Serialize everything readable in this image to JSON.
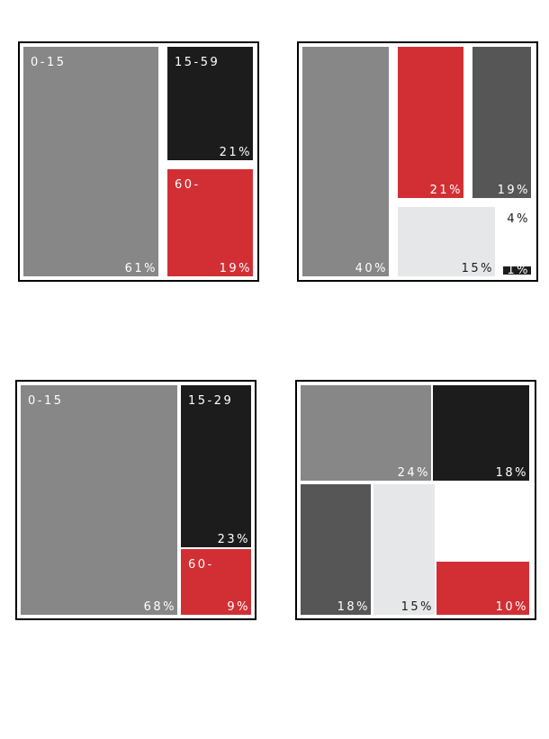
{
  "colors": {
    "gray": "#878787",
    "black": "#1c1c1c",
    "red": "#d22f35",
    "dark": "#565656",
    "light": "#e6e7e9",
    "white": "#ffffff",
    "label_white": "#ffffff",
    "label_dark": "#1c1c1c"
  },
  "chart_data": [
    {
      "type": "treemap",
      "tiles": [
        {
          "group": "0-15",
          "percent_label": "61%",
          "value": 61,
          "color": "gray"
        },
        {
          "group": "15-59",
          "percent_label": "21%",
          "value": 21,
          "color": "black"
        },
        {
          "group": "60-",
          "percent_label": "19%",
          "value": 19,
          "color": "red"
        }
      ]
    },
    {
      "type": "treemap",
      "tiles": [
        {
          "group": "",
          "percent_label": "40%",
          "value": 40,
          "color": "gray"
        },
        {
          "group": "",
          "percent_label": "21%",
          "value": 21,
          "color": "red"
        },
        {
          "group": "",
          "percent_label": "19%",
          "value": 19,
          "color": "dark"
        },
        {
          "group": "",
          "percent_label": "15%",
          "value": 15,
          "color": "light"
        },
        {
          "group": "",
          "percent_label": "4%",
          "value": 4,
          "color": "white"
        },
        {
          "group": "",
          "percent_label": "1%",
          "value": 1,
          "color": "black"
        }
      ]
    },
    {
      "type": "treemap",
      "tiles": [
        {
          "group": "0-15",
          "percent_label": "68%",
          "value": 68,
          "color": "gray"
        },
        {
          "group": "15-29",
          "percent_label": "23%",
          "value": 23,
          "color": "black"
        },
        {
          "group": "60-",
          "percent_label": "9%",
          "value": 9,
          "color": "red"
        }
      ]
    },
    {
      "type": "treemap",
      "tiles": [
        {
          "group": "",
          "percent_label": "24%",
          "value": 24,
          "color": "gray"
        },
        {
          "group": "",
          "percent_label": "18%",
          "value": 18,
          "color": "black"
        },
        {
          "group": "",
          "percent_label": "18%",
          "value": 18,
          "color": "dark"
        },
        {
          "group": "",
          "percent_label": "15%",
          "value": 15,
          "color": "light"
        },
        {
          "group": "",
          "percent_label": "10%",
          "value": 10,
          "color": "red"
        }
      ]
    }
  ]
}
